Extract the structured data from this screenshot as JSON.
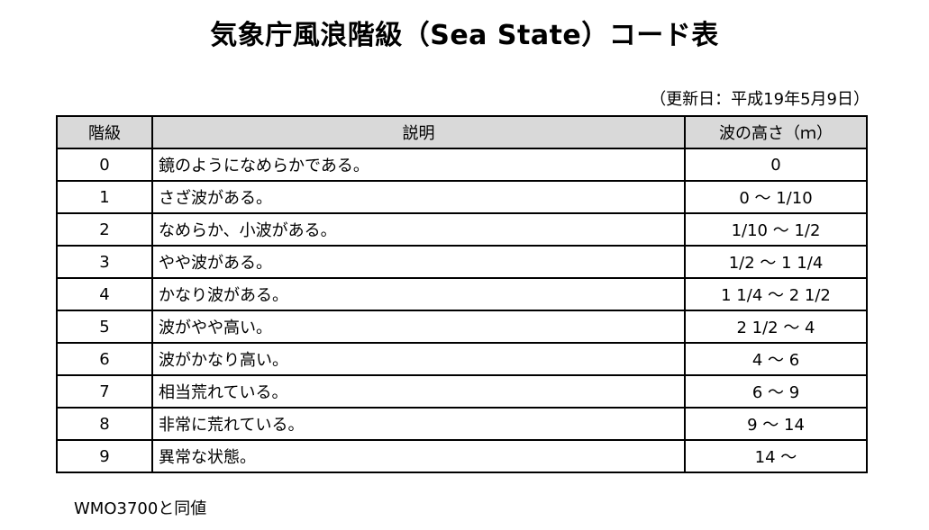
{
  "title": "気象庁風浪階級（Sea State）コード表",
  "updated": "（更新日：平成19年5月9日）",
  "table": {
    "headers": [
      "階級",
      "説明",
      "波の高さ（ｍ）"
    ],
    "rows": [
      [
        "0",
        "鏡のようになめらかである。",
        "0"
      ],
      [
        "1",
        "さざ波がある。",
        "0 ～ 1/10"
      ],
      [
        "2",
        "なめらか、小波がある。",
        "1/10 ～ 1/2"
      ],
      [
        "3",
        "やや波がある。",
        "1/2 ～ 1 1/4"
      ],
      [
        "4",
        "かなり波がある。",
        "1 1/4 ～ 2 1/2"
      ],
      [
        "5",
        "波がやや高い。",
        "2 1/2 ～ 4"
      ],
      [
        "6",
        "波がかなり高い。",
        "4 ～ 6"
      ],
      [
        "7",
        "相当荒れている。",
        "6 ～ 9"
      ],
      [
        "8",
        "非常に荒れている。",
        "9 ～ 14"
      ],
      [
        "9",
        "異常な状態。",
        "14 ～"
      ]
    ]
  },
  "note": "WMO3700と同値",
  "colors": {
    "header_bg": "#d9d9d9"
  }
}
